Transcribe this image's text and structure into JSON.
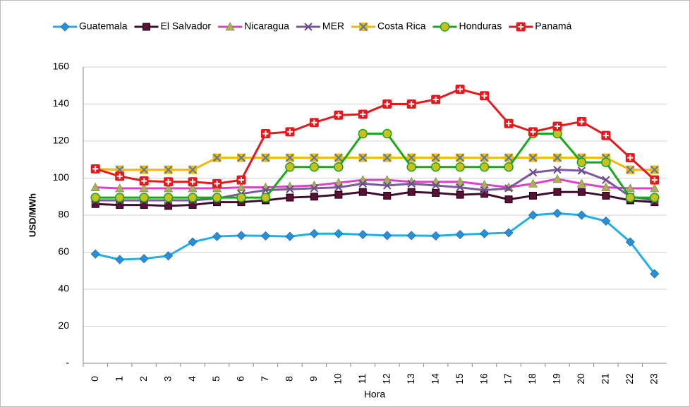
{
  "chart_data": {
    "type": "line",
    "xlabel": "Hora",
    "ylabel": "USD/MWh",
    "categories": [
      "0",
      "1",
      "2",
      "3",
      "4",
      "5",
      "6",
      "7",
      "8",
      "9",
      "10",
      "11",
      "12",
      "13",
      "14",
      "15",
      "16",
      "17",
      "18",
      "19",
      "20",
      "21",
      "22",
      "23"
    ],
    "ylim": [
      0,
      160
    ],
    "yticks": [
      {
        "value": 0,
        "label": "-"
      },
      20,
      40,
      60,
      80,
      100,
      120,
      140,
      160
    ],
    "grid": true,
    "legend": "top",
    "series": [
      {
        "name": "Guatemala",
        "color": "#1fb0e8",
        "marker": "diamond",
        "marker_color": "#2a8fd8",
        "values": [
          59,
          56,
          56.5,
          58,
          65.5,
          68.5,
          69,
          68.8,
          68.5,
          70,
          70,
          69.5,
          69,
          69,
          68.8,
          69.5,
          70,
          70.5,
          80,
          81,
          80,
          76.8,
          65.5,
          48.3
        ]
      },
      {
        "name": "El Salvador",
        "color": "#3d0f2e",
        "marker": "square",
        "marker_color": "#5c1035",
        "values": [
          86,
          85.5,
          85.5,
          85,
          85.5,
          87,
          87,
          88,
          89.5,
          90,
          91,
          92.5,
          90.5,
          92.5,
          92,
          91,
          91.5,
          88.5,
          90.5,
          92.5,
          92.5,
          90.5,
          88,
          87
        ]
      },
      {
        "name": "Nicaragua",
        "color": "#e040c8",
        "marker": "triangle",
        "marker_color": "#a8b060",
        "values": [
          95,
          94.5,
          94.5,
          94.5,
          94.5,
          94.5,
          95,
          95,
          95.5,
          96,
          97.5,
          99,
          99,
          98,
          98,
          98,
          96.5,
          95,
          97,
          99.5,
          97,
          95,
          94.5,
          94.5
        ]
      },
      {
        "name": "MER",
        "color": "#7a5a9a",
        "marker": "x",
        "marker_color": "#6a4a8a",
        "values": [
          88,
          88,
          88,
          88,
          88,
          89,
          91.5,
          93.5,
          94,
          94.5,
          95,
          97,
          96,
          97,
          96,
          95,
          93.5,
          94.5,
          103,
          104.5,
          104,
          99,
          90,
          88
        ]
      },
      {
        "name": "Costa Rica",
        "color": "#f5b800",
        "marker": "xbox",
        "marker_color": "#4a7ab0",
        "values": [
          105,
          104.5,
          104.5,
          104.5,
          104.5,
          111,
          111,
          111,
          111,
          111,
          111,
          111,
          111,
          111,
          111,
          111,
          111,
          111,
          111,
          111,
          111,
          111,
          104.5,
          104.5
        ]
      },
      {
        "name": "Honduras",
        "color": "#18a818",
        "marker": "circle",
        "marker_color": "#c8c020",
        "values": [
          89.5,
          89.5,
          89.5,
          89.5,
          89.5,
          89.5,
          89.5,
          89.5,
          106,
          106,
          106,
          124,
          124,
          106,
          106,
          106,
          106,
          106,
          124,
          124,
          108.5,
          108.5,
          89.5,
          89.5
        ]
      },
      {
        "name": "Panamá",
        "color": "#e8171c",
        "marker": "cross",
        "marker_color": "#e8171c",
        "values": [
          105,
          101,
          98.5,
          98,
          98,
          97,
          99,
          124,
          125,
          130,
          134,
          134.5,
          140,
          140,
          142.5,
          148,
          144.5,
          129.5,
          125,
          128,
          130.5,
          123,
          111,
          99
        ]
      }
    ]
  }
}
